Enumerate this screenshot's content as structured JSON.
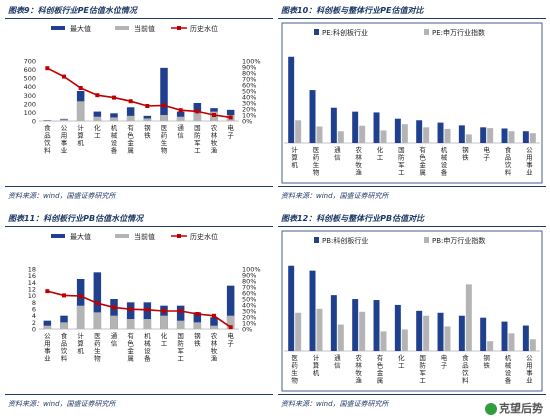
{
  "source_label": "资料来源：wind，国盛证券研究所",
  "watermark": "克望后势",
  "colors": {
    "max": "#1f3f8f",
    "cur": "#b4b4b4",
    "line": "#c00000",
    "frame": "#1f3864"
  },
  "chart_data": [
    {
      "id": "fig9",
      "type": "bar",
      "title": "图表9：科创板行业PE估值水位情况",
      "legend": [
        "最大值",
        "当前值",
        "历史水位"
      ],
      "categories": [
        "食品饮料",
        "公用事业",
        "计算机",
        "化工",
        "机械设备",
        "有色金属",
        "钢铁",
        "医药生物",
        "通信",
        "国防军工",
        "农林牧渔",
        "电子"
      ],
      "series": [
        {
          "name": "最大值",
          "values": [
            10,
            25,
            350,
            110,
            90,
            160,
            60,
            620,
            110,
            210,
            150,
            130
          ]
        },
        {
          "name": "当前值",
          "values": [
            6,
            18,
            230,
            50,
            42,
            60,
            30,
            70,
            50,
            100,
            110,
            70
          ]
        },
        {
          "name": "历史水位",
          "values": [
            88,
            74,
            55,
            43,
            39,
            33,
            25,
            26,
            18,
            16,
            10,
            6
          ]
        }
      ],
      "ylim": [
        0,
        700
      ],
      "y2lim": [
        0,
        100
      ],
      "yticks": [
        "0",
        "100",
        "200",
        "300",
        "400",
        "500",
        "600",
        "700"
      ],
      "y2ticks": [
        "0%",
        "10%",
        "20%",
        "30%",
        "40%",
        "50%",
        "60%",
        "70%",
        "80%",
        "90%",
        "100%"
      ],
      "legend_position": "top"
    },
    {
      "id": "fig10",
      "type": "bar",
      "title": "图表10：科创板与整体行业PE估值对比",
      "legend": [
        "PE:科创板行业",
        "PE:申万行业指数"
      ],
      "categories": [
        "计算机",
        "医药生物",
        "通信",
        "农林牧渔",
        "化工",
        "国防军工",
        "有色金属",
        "机械设备",
        "钢铁",
        "电子",
        "食品饮料",
        "公用事业"
      ],
      "series": [
        {
          "name": "PE:科创板行业",
          "values": [
            220,
            135,
            90,
            80,
            78,
            62,
            58,
            52,
            45,
            40,
            37,
            30
          ]
        },
        {
          "name": "PE:申万行业指数",
          "values": [
            58,
            42,
            30,
            44,
            32,
            48,
            40,
            36,
            22,
            38,
            30,
            25
          ]
        }
      ],
      "ylim": [
        0,
        250
      ],
      "legend_position": "top"
    },
    {
      "id": "fig11",
      "type": "bar",
      "title": "图表11：科创板行业PB估值水位情况",
      "legend": [
        "最大值",
        "当前值",
        "历史水位"
      ],
      "categories": [
        "公用事业",
        "食品饮料",
        "计算机",
        "医药生物",
        "通信",
        "有色金属",
        "机械设备",
        "化工",
        "国防军工",
        "钢铁",
        "农林牧渔",
        "电子"
      ],
      "series": [
        {
          "name": "最大值",
          "values": [
            2.5,
            4,
            15,
            17,
            9,
            8,
            8,
            7,
            7,
            5,
            3.5,
            13
          ]
        },
        {
          "name": "当前值",
          "values": [
            1,
            2,
            7,
            5,
            4,
            3,
            3,
            4,
            2.5,
            2,
            1,
            4
          ]
        },
        {
          "name": "历史水位",
          "values": [
            63,
            56,
            55,
            43,
            36,
            33,
            32,
            30,
            30,
            25,
            22,
            3
          ]
        }
      ],
      "ylim": [
        0,
        18
      ],
      "y2lim": [
        0,
        100
      ],
      "yticks": [
        "0",
        "2",
        "4",
        "6",
        "8",
        "10",
        "12",
        "14",
        "16",
        "18"
      ],
      "y2ticks": [
        "0%",
        "10%",
        "20%",
        "30%",
        "40%",
        "50%",
        "60%",
        "70%",
        "80%",
        "90%",
        "100%"
      ],
      "legend_position": "top"
    },
    {
      "id": "fig12",
      "type": "bar",
      "title": "图表12：科创板与整体行业PB估值对比",
      "legend": [
        "PB:科创板行业",
        "PB:申万行业指数"
      ],
      "categories": [
        "医药生物",
        "计算机",
        "通信",
        "农林牧渔",
        "有色金属",
        "化工",
        "国防军工",
        "电子",
        "食品饮料",
        "钢铁",
        "机械设备",
        "公用事业"
      ],
      "series": [
        {
          "name": "PB:科创板行业",
          "values": [
            8.7,
            8.2,
            5.7,
            5.3,
            5.2,
            4.7,
            4.1,
            3.9,
            3.6,
            3.4,
            3.0,
            2.6
          ]
        },
        {
          "name": "PB:申万行业指数",
          "values": [
            3.9,
            4.3,
            2.7,
            4.0,
            2.0,
            2.2,
            3.6,
            2.5,
            6.8,
            1.0,
            1.8,
            1.2
          ]
        }
      ],
      "ylim": [
        0,
        10
      ],
      "legend_position": "top"
    }
  ]
}
